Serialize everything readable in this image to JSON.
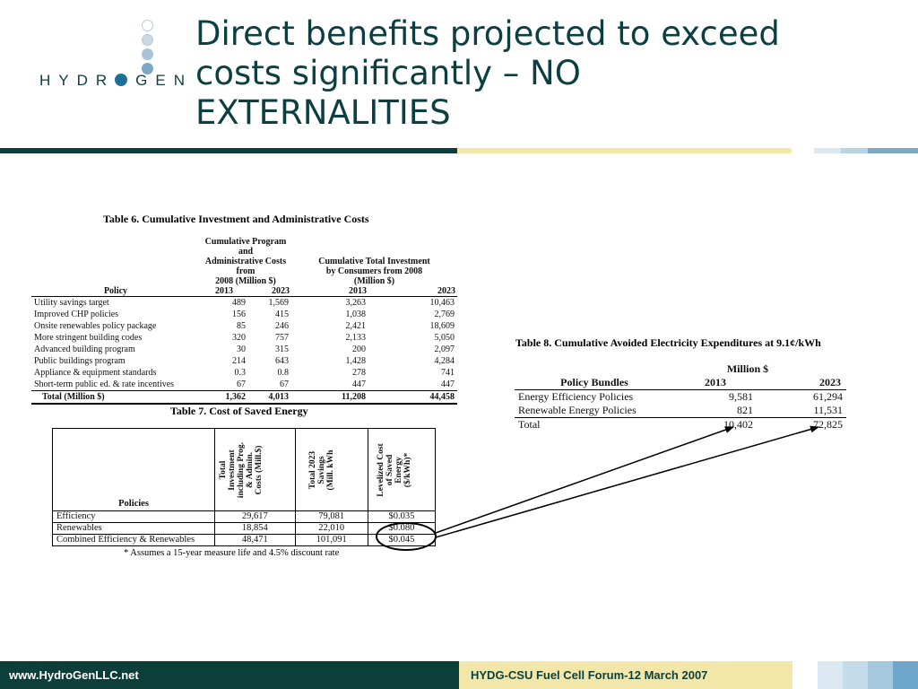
{
  "logo": {
    "text_before": "HYDR",
    "text_after": "GEN"
  },
  "slide": {
    "title": "Direct benefits projected to exceed\ncosts significantly  – NO\nEXTERNALITIES"
  },
  "colors": {
    "title_text": "#0d3f42",
    "title_bar": [
      "#0d3f3a",
      "#f2e7a8",
      "#ffffff",
      "#dbe8f1",
      "#b9d3e6",
      "#7ea7c4"
    ],
    "footer_left_bg": "#0d3f3a",
    "footer_right_bg": "#f2e7a8",
    "footer_swatches": [
      "#ffffff",
      "#dbe8f1",
      "#c4dbea",
      "#a6c8df",
      "#6fa7cc"
    ]
  },
  "table6": {
    "caption": "Table 6. Cumulative Investment and Administrative Costs",
    "group1": "Cumulative Program and\nAdministrative Costs from\n2008 (Million $)",
    "group2": "Cumulative Total Investment\nby Consumers from 2008\n(Million $)",
    "policy_header": "Policy",
    "years": [
      "2013",
      "2023",
      "2013",
      "2023"
    ],
    "rows": [
      {
        "policy": "Utility savings target",
        "values": [
          "489",
          "1,569",
          "3,263",
          "10,463"
        ]
      },
      {
        "policy": "Improved CHP policies",
        "values": [
          "156",
          "415",
          "1,038",
          "2,769"
        ]
      },
      {
        "policy": "Onsite renewables policy package",
        "values": [
          "85",
          "246",
          "2,421",
          "18,609"
        ]
      },
      {
        "policy": "More stringent building codes",
        "values": [
          "320",
          "757",
          "2,133",
          "5,050"
        ]
      },
      {
        "policy": "Advanced building program",
        "values": [
          "30",
          "315",
          "200",
          "2,097"
        ]
      },
      {
        "policy": "Public buildings program",
        "values": [
          "214",
          "643",
          "1,428",
          "4,284"
        ]
      },
      {
        "policy": "Appliance & equipment standards",
        "values": [
          "0.3",
          "0.8",
          "278",
          "741"
        ]
      },
      {
        "policy": "Short-term public ed. & rate incentives",
        "values": [
          "67",
          "67",
          "447",
          "447"
        ]
      }
    ],
    "total": {
      "policy": "Total (Million $)",
      "values": [
        "1,362",
        "4,013",
        "11,208",
        "44,458"
      ]
    }
  },
  "table7": {
    "caption": "Table 7. Cost of Saved Energy",
    "policies_header": "Policies",
    "col1": "Total\nInvestment\nincluding Prog.\n& Admin.\nCosts (Mill.$)",
    "col2": "Total 2023\nSavings\n(Mill. kWh",
    "col3": "Levelized Cost\nof Saved\nEnergy\n($/kWh)*",
    "rows": [
      {
        "policy": "Efficiency",
        "values": [
          "29,617",
          "79,081",
          "$0.035"
        ]
      },
      {
        "policy": "Renewables",
        "values": [
          "18,854",
          "22,010",
          "$0.080"
        ]
      },
      {
        "policy": "Combined Efficiency & Renewables",
        "values": [
          "48,471",
          "101,091",
          "$0.045"
        ]
      }
    ],
    "note": "* Assumes a 15-year measure life and 4.5% discount rate"
  },
  "table8": {
    "caption": "Table 8. Cumulative Avoided Electricity Expenditures at 9.1¢/kWh",
    "group": "Million $",
    "header": [
      "Policy Bundles",
      "2013",
      "2023"
    ],
    "rows": [
      {
        "label": "Energy Efficiency Policies",
        "values": [
          "9,581",
          "61,294"
        ]
      },
      {
        "label": "Renewable Energy Policies",
        "values": [
          "821",
          "11,531"
        ]
      },
      {
        "label": "Total",
        "values": [
          "10,402",
          "72,825"
        ]
      }
    ]
  },
  "footer": {
    "left": "www.HydroGenLLC.net",
    "right": "HYDG-CSU Fuel Cell Forum-12 March 2007"
  }
}
